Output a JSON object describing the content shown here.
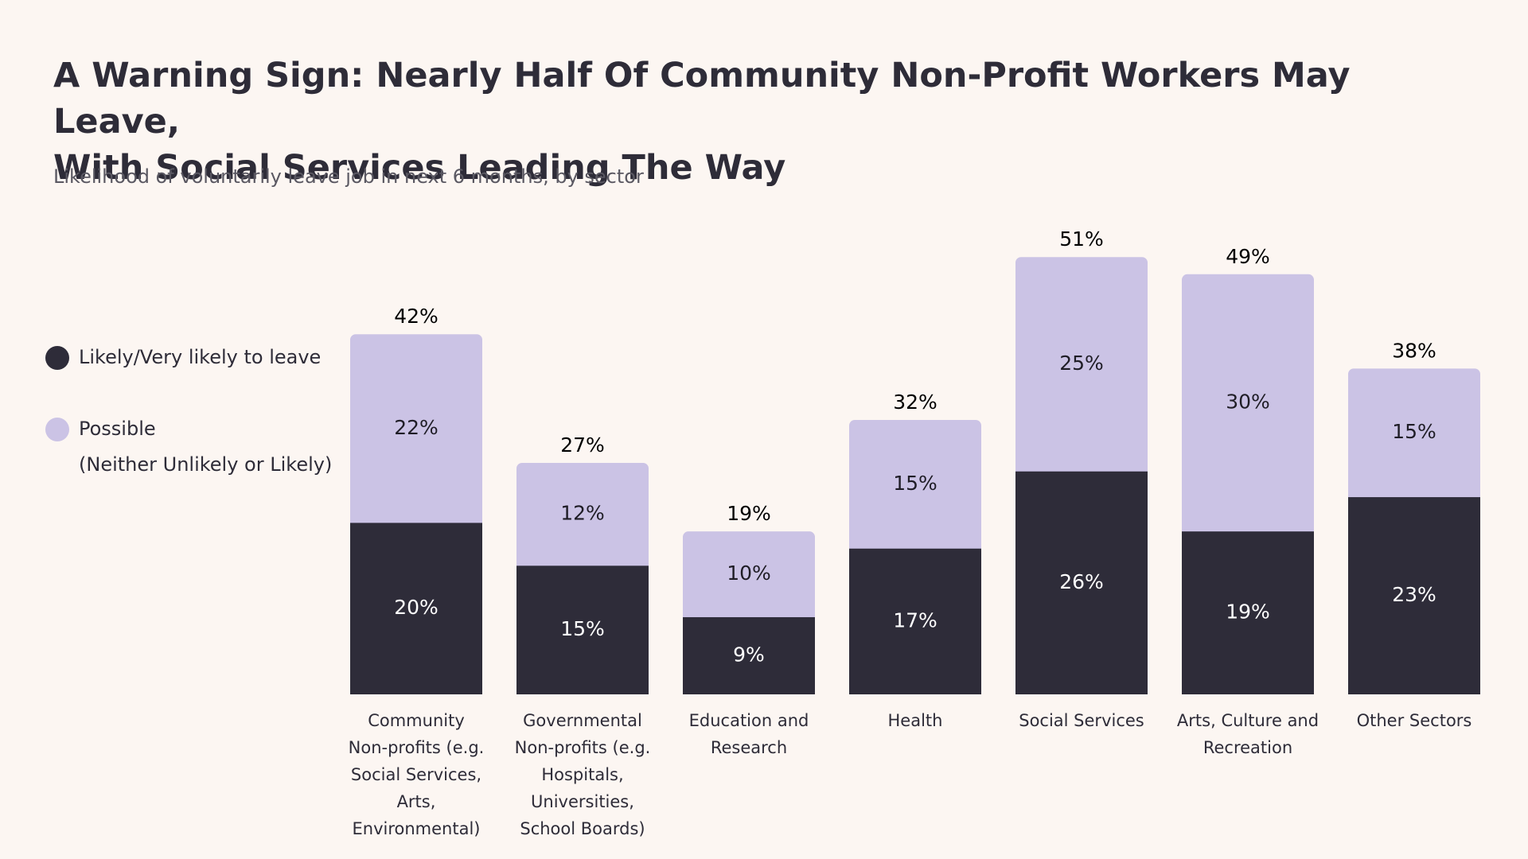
{
  "title_lines": [
    "A Warning Sign: Nearly Half Of Community Non-Profit Workers May Leave,",
    "With Social Services Leading The Way"
  ],
  "subtitle": "Likelihood of voluntarily leave job in next 6 months, by sector",
  "legend": {
    "likely": {
      "label": "Likely/Very likely to leave",
      "color": "#2e2c39"
    },
    "possible": {
      "label": "Possible",
      "sublabel": "(Neither Unlikely or Likely)",
      "color": "#cbc3e5"
    }
  },
  "colors": {
    "likely": "#2e2c39",
    "possible": "#cbc3e5",
    "text_dark": "#1f1d26",
    "text_light": "#ffffff"
  },
  "chart_data": {
    "type": "bar",
    "stacked": true,
    "title": "A Warning Sign: Nearly Half Of Community Non-Profit Workers May Leave, With Social Services Leading The Way",
    "subtitle": "Likelihood of voluntarily leave job in next 6 months, by sector",
    "xlabel": "",
    "ylabel": "",
    "ylim": [
      0,
      55
    ],
    "grid": false,
    "legend_position": "left",
    "categories": [
      "Community Non-profits (e.g. Social Services, Arts, Environmental)",
      "Governmental Non-profits (e.g. Hospitals, Universities, School Boards)",
      "Education and Research",
      "Health",
      "Social Services",
      "Arts, Culture and Recreation",
      "Other Sectors"
    ],
    "category_label_lines": [
      [
        "Community",
        "Non-profits (e.g.",
        "Social Services,",
        "Arts,",
        "Environmental)"
      ],
      [
        "Governmental",
        "Non-profits (e.g.",
        "Hospitals,",
        "Universities,",
        "School Boards)"
      ],
      [
        "Education and",
        "Research"
      ],
      [
        "Health"
      ],
      [
        "Social Services"
      ],
      [
        "Arts, Culture and",
        "Recreation"
      ],
      [
        "Other Sectors"
      ]
    ],
    "series": [
      {
        "name": "Likely/Very likely to leave",
        "values": [
          20,
          15,
          9,
          17,
          26,
          19,
          23
        ]
      },
      {
        "name": "Possible (Neither Unlikely or Likely)",
        "values": [
          22,
          12,
          10,
          15,
          25,
          30,
          15
        ]
      }
    ],
    "totals": [
      42,
      27,
      19,
      32,
      51,
      49,
      38
    ],
    "value_suffix": "%"
  }
}
